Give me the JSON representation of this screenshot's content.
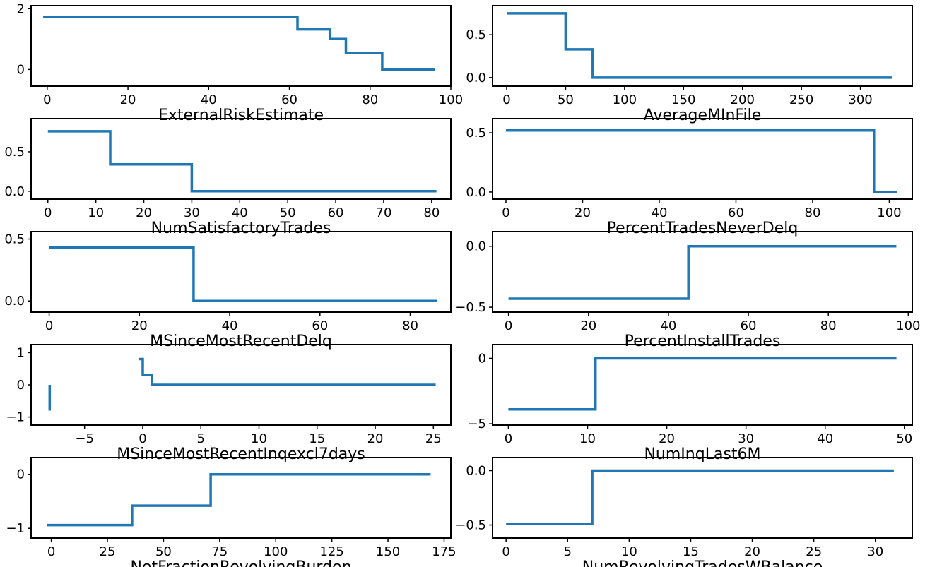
{
  "line_color": "#1f77b4",
  "chart_data": [
    {
      "type": "line",
      "step": true,
      "xlabel": "ExternalRiskEstimate",
      "ylabel": "",
      "xlim": [
        -4,
        100
      ],
      "ylim": [
        -0.55,
        2.1
      ],
      "xticks": [
        0,
        20,
        40,
        60,
        80,
        100
      ],
      "yticks": [
        0,
        2
      ],
      "series": [
        {
          "x": [
            -1,
            62,
            62,
            70,
            70,
            74,
            74,
            83,
            83,
            96
          ],
          "y": [
            1.72,
            1.72,
            1.32,
            1.32,
            1.0,
            1.0,
            0.55,
            0.55,
            0,
            0
          ]
        }
      ]
    },
    {
      "type": "line",
      "step": true,
      "xlabel": "AverageMInFile",
      "ylabel": "",
      "xlim": [
        -12,
        344
      ],
      "ylim": [
        -0.1,
        0.84
      ],
      "xticks": [
        0,
        50,
        100,
        150,
        200,
        250,
        300
      ],
      "yticks": [
        0.0,
        0.5
      ],
      "ytick_labels": [
        "0.0",
        "0.5"
      ],
      "series": [
        {
          "x": [
            0,
            50,
            50,
            73,
            73,
            327
          ],
          "y": [
            0.75,
            0.75,
            0.33,
            0.33,
            0,
            0
          ]
        }
      ]
    },
    {
      "type": "line",
      "step": true,
      "xlabel": "NumSatisfactoryTrades",
      "ylabel": "",
      "xlim": [
        -3.5,
        84
      ],
      "ylim": [
        -0.1,
        0.92
      ],
      "xticks": [
        0,
        10,
        20,
        30,
        40,
        50,
        60,
        70,
        80
      ],
      "yticks": [
        0.0,
        0.5
      ],
      "ytick_labels": [
        "0.0",
        "0.5"
      ],
      "series": [
        {
          "x": [
            0,
            13,
            13,
            30,
            30,
            81
          ],
          "y": [
            0.76,
            0.76,
            0.34,
            0.34,
            0,
            0
          ]
        }
      ]
    },
    {
      "type": "line",
      "step": true,
      "xlabel": "PercentTradesNeverDelq",
      "ylabel": "",
      "xlim": [
        -3.5,
        106
      ],
      "ylim": [
        -0.06,
        0.62
      ],
      "xticks": [
        0,
        20,
        40,
        60,
        80,
        100
      ],
      "yticks": [
        0.0,
        0.5
      ],
      "ytick_labels": [
        "0.0",
        "0.5"
      ],
      "series": [
        {
          "x": [
            0,
            96,
            96,
            102
          ],
          "y": [
            0.52,
            0.52,
            0,
            0
          ]
        }
      ]
    },
    {
      "type": "line",
      "step": true,
      "xlabel": "MSinceMostRecentDelq",
      "ylabel": "",
      "xlim": [
        -4,
        89
      ],
      "ylim": [
        -0.09,
        0.56
      ],
      "xticks": [
        0,
        20,
        40,
        60,
        80
      ],
      "yticks": [
        0.0,
        0.5
      ],
      "ytick_labels": [
        "0.0",
        "0.5"
      ],
      "series": [
        {
          "x": [
            0,
            32,
            32,
            86
          ],
          "y": [
            0.43,
            0.43,
            0,
            0
          ]
        }
      ]
    },
    {
      "type": "line",
      "step": true,
      "xlabel": "PercentInstallTrades",
      "ylabel": "",
      "xlim": [
        -4,
        101
      ],
      "ylim": [
        -0.54,
        0.12
      ],
      "xticks": [
        0,
        20,
        40,
        60,
        80,
        100
      ],
      "yticks": [
        -0.5,
        0.0
      ],
      "ytick_labels": [
        "−0.5",
        "0.0"
      ],
      "series": [
        {
          "x": [
            0,
            45,
            45,
            97
          ],
          "y": [
            -0.43,
            -0.43,
            0,
            0
          ]
        }
      ]
    },
    {
      "type": "line",
      "step": true,
      "xlabel": "MSinceMostRecentInqexcl7days",
      "ylabel": "",
      "xlim": [
        -9.6,
        26.5
      ],
      "ylim": [
        -1.25,
        1.25
      ],
      "xticks": [
        -5,
        0,
        5,
        10,
        15,
        20,
        25
      ],
      "xtick_labels": [
        "−5",
        "0",
        "5",
        "10",
        "15",
        "20",
        "25"
      ],
      "yticks": [
        -1,
        0,
        1
      ],
      "ytick_labels": [
        "−1",
        "0",
        "1"
      ],
      "series": [
        {
          "x": [
            -8,
            -8
          ],
          "y": [
            -0.8,
            0
          ]
        },
        {
          "x": [
            -0.3,
            -0.3,
            0,
            0,
            0.8,
            0.8,
            25.2
          ],
          "y": [
            0.8,
            0.8,
            0.8,
            0.3,
            0.3,
            0,
            0
          ]
        }
      ]
    },
    {
      "type": "line",
      "step": true,
      "xlabel": "NumInqLast6M",
      "ylabel": "",
      "xlim": [
        -2,
        51
      ],
      "ylim": [
        -5.1,
        1.05
      ],
      "xticks": [
        0,
        10,
        20,
        30,
        40,
        50
      ],
      "yticks": [
        -5,
        0
      ],
      "ytick_labels": [
        "−5",
        "0"
      ],
      "series": [
        {
          "x": [
            0,
            11,
            11,
            49
          ],
          "y": [
            -3.9,
            -3.9,
            0,
            0
          ]
        }
      ]
    },
    {
      "type": "line",
      "step": true,
      "xlabel": "NetFractionRevolvingBurden",
      "ylabel": "",
      "xlim": [
        -9,
        178
      ],
      "ylim": [
        -1.18,
        0.31
      ],
      "xticks": [
        0,
        25,
        50,
        75,
        100,
        125,
        150,
        175
      ],
      "yticks": [
        -1,
        0
      ],
      "ytick_labels": [
        "−1",
        "0"
      ],
      "series": [
        {
          "x": [
            -2,
            36,
            36,
            71,
            71,
            169
          ],
          "y": [
            -0.94,
            -0.94,
            -0.58,
            -0.58,
            0,
            0
          ]
        }
      ]
    },
    {
      "type": "line",
      "step": true,
      "xlabel": "NumRevolvingTradesWBalance",
      "ylabel": "",
      "xlim": [
        -1.1,
        33
      ],
      "ylim": [
        -0.62,
        0.12
      ],
      "xticks": [
        0,
        5,
        10,
        15,
        20,
        25,
        30
      ],
      "yticks": [
        -0.5,
        0.0
      ],
      "ytick_labels": [
        "−0.5",
        "0.0"
      ],
      "series": [
        {
          "x": [
            0,
            7,
            7,
            31.5
          ],
          "y": [
            -0.49,
            -0.49,
            0,
            0
          ]
        }
      ]
    }
  ]
}
